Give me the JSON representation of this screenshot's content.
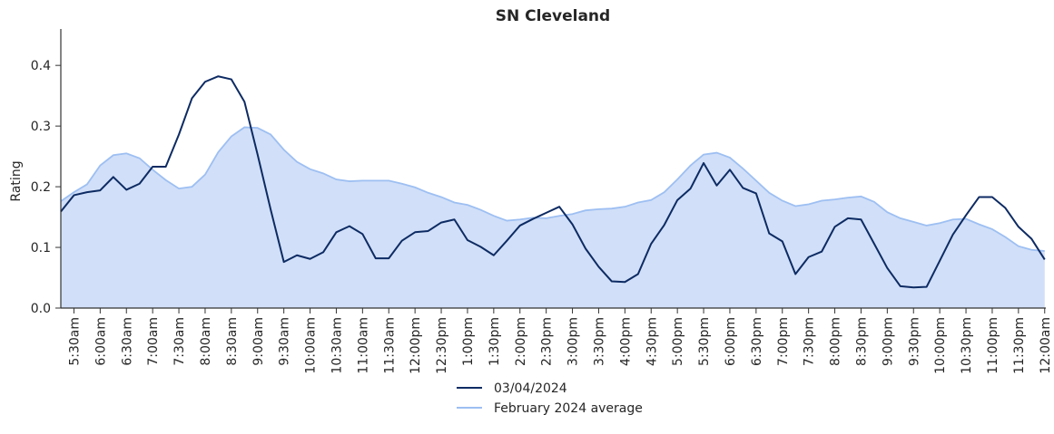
{
  "chart_data": {
    "type": "area",
    "title": "SN Cleveland",
    "xlabel": "",
    "ylabel": "Rating",
    "ylim": [
      0,
      0.46
    ],
    "yticks": [
      0.0,
      0.1,
      0.2,
      0.3,
      0.4
    ],
    "ytick_labels": [
      "0.0",
      "0.1",
      "0.2",
      "0.3",
      "0.4"
    ],
    "x_tick_labels": [
      "5:30am",
      "6:00am",
      "6:30am",
      "7:00am",
      "7:30am",
      "8:00am",
      "8:30am",
      "9:00am",
      "9:30am",
      "10:00am",
      "10:30am",
      "11:00am",
      "11:30am",
      "12:00pm",
      "12:30pm",
      "1:00pm",
      "1:30pm",
      "2:00pm",
      "2:30pm",
      "3:00pm",
      "3:30pm",
      "4:00pm",
      "4:30pm",
      "5:00pm",
      "5:30pm",
      "6:00pm",
      "6:30pm",
      "7:00pm",
      "7:30pm",
      "8:00pm",
      "8:30pm",
      "9:00pm",
      "9:30pm",
      "10:00pm",
      "10:30pm",
      "11:00pm",
      "11:30pm",
      "12:00am"
    ],
    "x_start_label": "5:15am",
    "x_step_minutes": 15,
    "grid": false,
    "legend_position": "bottom-center",
    "series": [
      {
        "name": "03/04/2024",
        "style": "line",
        "color": "#0d2b63",
        "values": [
          0.159,
          0.186,
          0.191,
          0.194,
          0.216,
          0.195,
          0.205,
          0.233,
          0.233,
          0.286,
          0.346,
          0.373,
          0.382,
          0.377,
          0.34,
          0.253,
          0.162,
          0.076,
          0.087,
          0.081,
          0.092,
          0.125,
          0.135,
          0.122,
          0.082,
          0.082,
          0.111,
          0.125,
          0.127,
          0.141,
          0.146,
          0.112,
          0.101,
          0.087,
          0.111,
          0.136,
          0.147,
          0.157,
          0.167,
          0.138,
          0.098,
          0.068,
          0.044,
          0.043,
          0.056,
          0.106,
          0.137,
          0.178,
          0.197,
          0.239,
          0.202,
          0.228,
          0.198,
          0.189,
          0.123,
          0.11,
          0.056,
          0.084,
          0.093,
          0.134,
          0.148,
          0.146,
          0.106,
          0.066,
          0.036,
          0.034,
          0.035,
          0.078,
          0.121,
          0.153,
          0.183,
          0.183,
          0.165,
          0.134,
          0.114,
          0.08
        ]
      },
      {
        "name": "February 2024 average",
        "style": "area",
        "color": "#9dbff2",
        "fill": "#d1dff8",
        "values": [
          0.176,
          0.191,
          0.204,
          0.235,
          0.252,
          0.255,
          0.247,
          0.228,
          0.211,
          0.197,
          0.2,
          0.22,
          0.257,
          0.283,
          0.298,
          0.297,
          0.286,
          0.261,
          0.241,
          0.229,
          0.222,
          0.212,
          0.209,
          0.21,
          0.21,
          0.21,
          0.205,
          0.199,
          0.19,
          0.183,
          0.174,
          0.17,
          0.162,
          0.152,
          0.144,
          0.146,
          0.149,
          0.148,
          0.152,
          0.155,
          0.161,
          0.163,
          0.164,
          0.167,
          0.174,
          0.178,
          0.191,
          0.212,
          0.235,
          0.253,
          0.256,
          0.248,
          0.23,
          0.21,
          0.19,
          0.177,
          0.168,
          0.171,
          0.177,
          0.179,
          0.182,
          0.184,
          0.175,
          0.158,
          0.148,
          0.142,
          0.136,
          0.14,
          0.146,
          0.147,
          0.138,
          0.13,
          0.117,
          0.102,
          0.096,
          0.094
        ]
      }
    ]
  }
}
